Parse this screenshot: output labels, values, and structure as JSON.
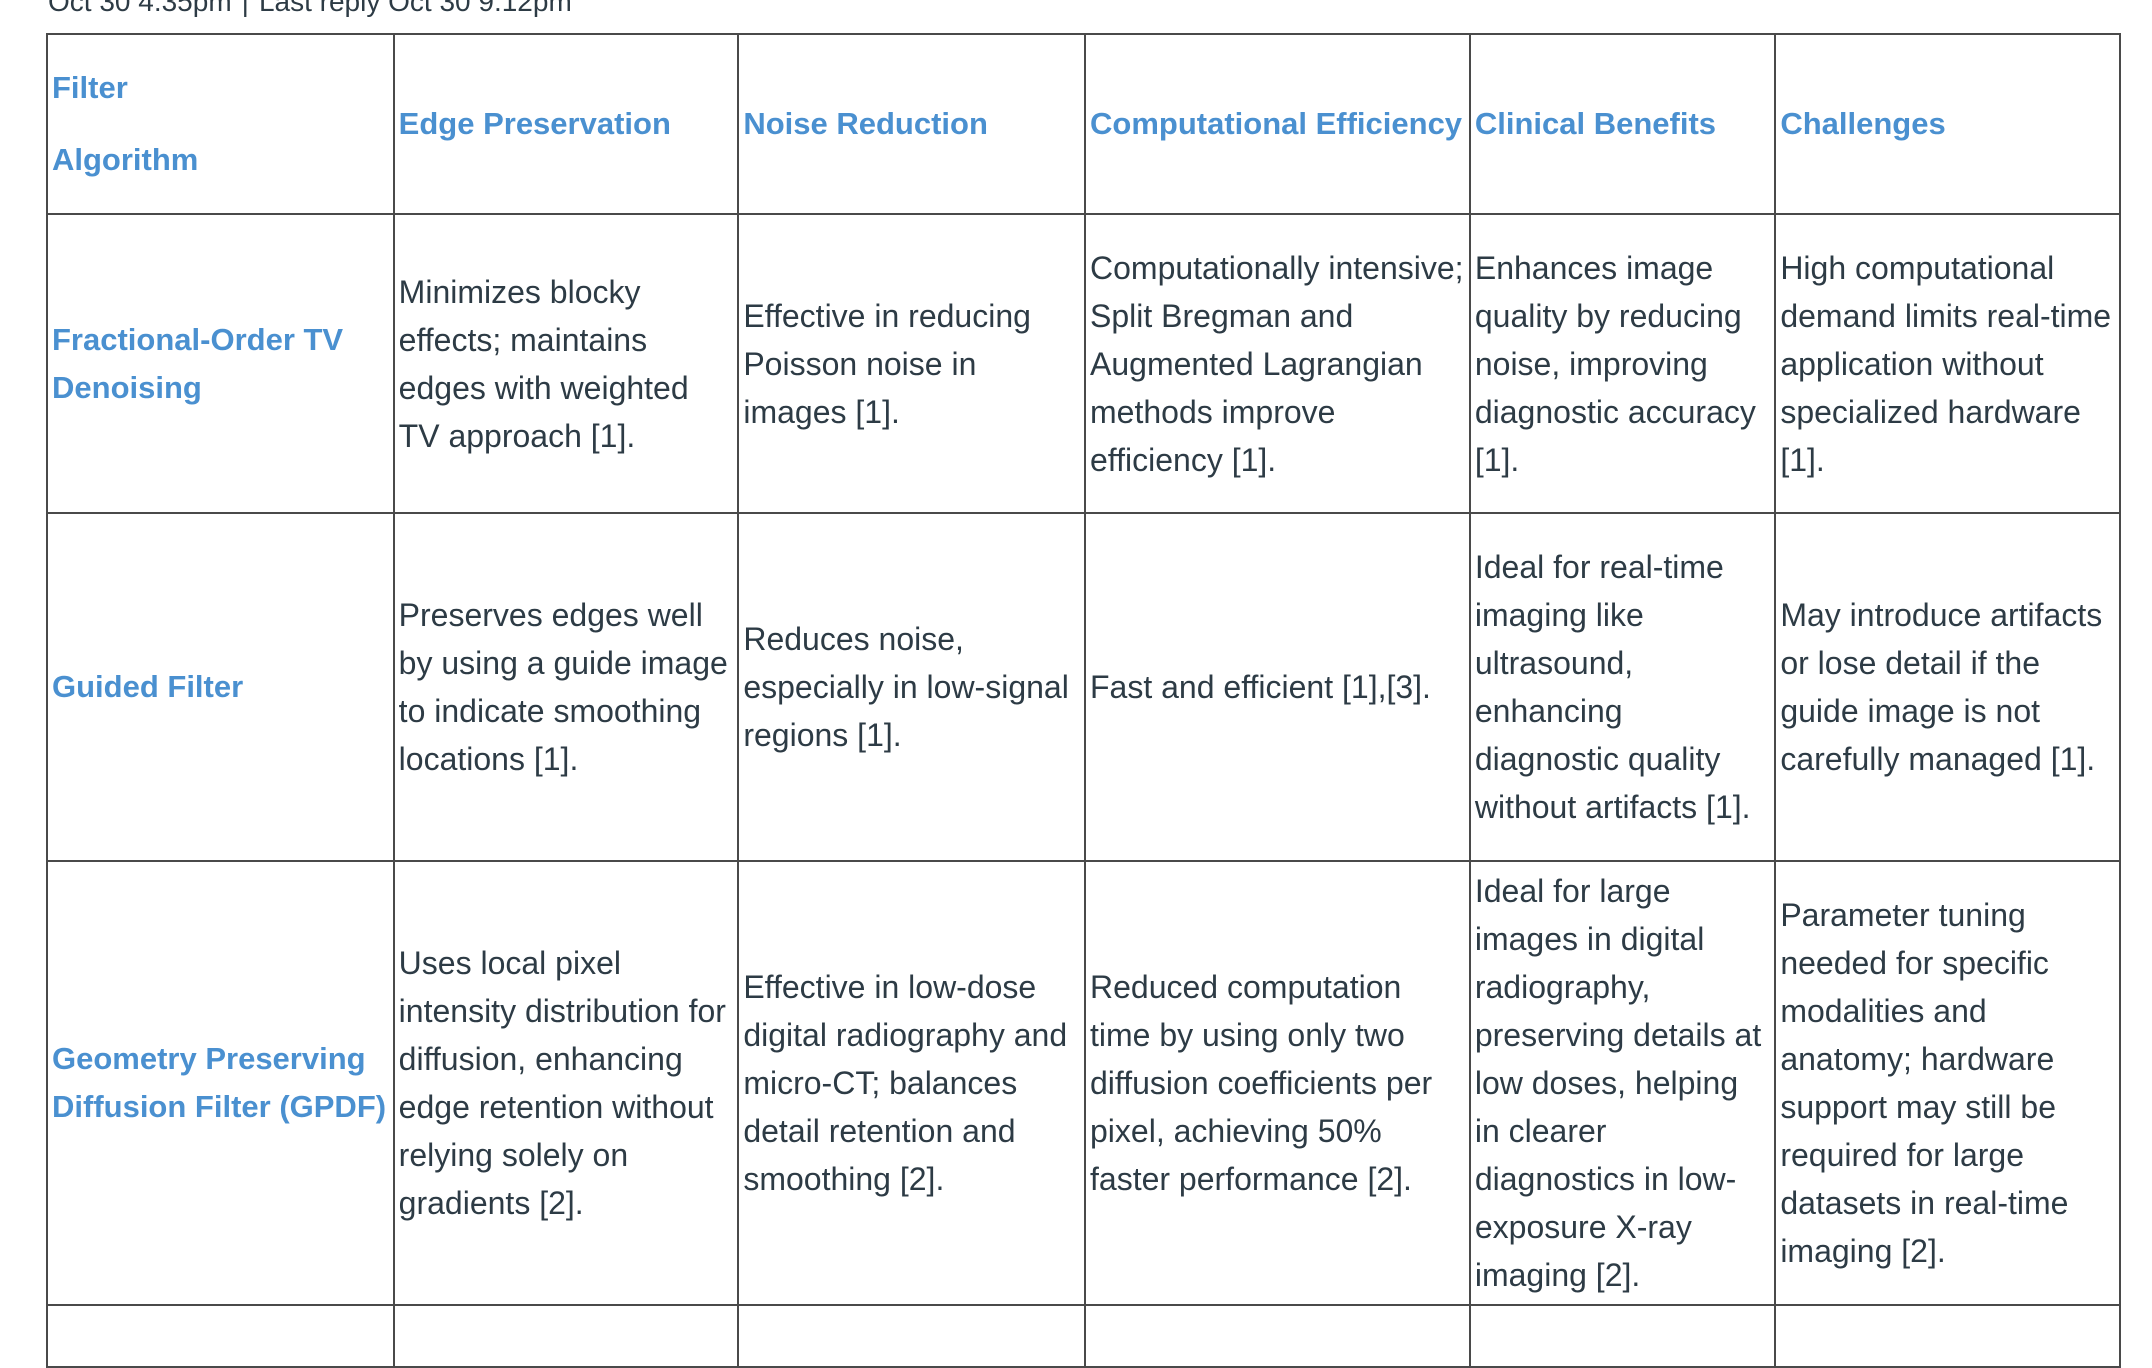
{
  "meta": {
    "posted": "Oct 30 4:35pm",
    "last_reply": "Last reply Oct 30 9:12pm"
  },
  "table": {
    "headers": {
      "filter_line1": "Filter",
      "filter_line2": "Algorithm",
      "edge": "Edge Preservation",
      "noise": "Noise Reduction",
      "compute": "Computational Efficiency",
      "clinical": "Clinical Benefits",
      "challenges": "Challenges"
    },
    "rows": [
      {
        "algorithm": "Fractional-Order TV Denoising",
        "edge": "Minimizes blocky effects; maintains edges with weighted TV approach [1].",
        "noise": "Effective in reducing Poisson noise in images [1].",
        "compute": "Computationally intensive; Split Bregman and Augmented Lagrangian methods improve efficiency [1].",
        "clinical": "Enhances image quality by reducing noise, improving diagnostic accuracy [1].",
        "challenges": "High computational demand limits real-time application without specialized hardware [1]."
      },
      {
        "algorithm": "Guided Filter",
        "edge": "Preserves edges well by using a guide image to indicate smoothing locations [1].",
        "noise": "Reduces noise, especially in low-signal regions [1].",
        "compute": "Fast and efficient [1],[3].",
        "clinical": "Ideal for real-time imaging like ultrasound, enhancing diagnostic quality without artifacts [1].",
        "challenges": "May introduce artifacts or lose detail if the guide image is not carefully managed [1]."
      },
      {
        "algorithm": "Geometry Preserving Diffusion Filter (GPDF)",
        "edge": "Uses local pixel intensity distribution for diffusion, enhancing edge retention without relying solely on gradients [2].",
        "noise": "Effective in low-dose digital radiography and micro-CT; balances detail retention and smoothing [2].",
        "compute": "Reduced computation time by using only two diffusion coefficients per pixel, achieving 50% faster performance [2].",
        "clinical": "Ideal for large images in digital radiography, preserving details at low doses, helping in clearer diagnostics in low-exposure X-ray imaging [2].",
        "challenges": "Parameter tuning needed for specific modalities and anatomy; hardware support may still be required for large datasets in real-time imaging [2]."
      }
    ]
  }
}
